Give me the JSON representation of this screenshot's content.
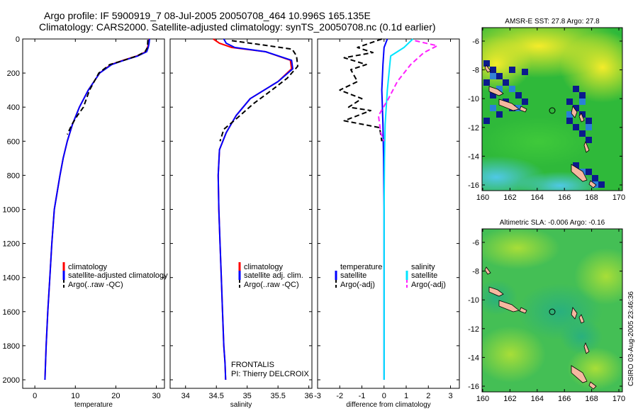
{
  "header": {
    "line1": "Argo profile: IF 5900919_7 08-Jul-2005 20050708_464 10.996S 165.135E",
    "line2": "Climatology: CARS2000. Satellite-adjusted climatology: synTS_20050708.nc (0.1d earlier)"
  },
  "credit": "CSIRO 03-Aug-2005 23:46:36",
  "colors": {
    "red": "#ff0000",
    "blue": "#0000ff",
    "black": "#000000",
    "cyan": "#00e5ff",
    "magenta": "#ff20ff"
  },
  "chart_data": [
    {
      "id": "temperature",
      "type": "line",
      "xlabel": "temperature",
      "ylabel": "",
      "xlim": [
        -3,
        32
      ],
      "ylim": [
        2050,
        0
      ],
      "xticks": [
        0,
        10,
        20,
        30
      ],
      "yticks": [
        0,
        200,
        400,
        600,
        800,
        1000,
        1200,
        1400,
        1600,
        1800,
        2000
      ],
      "series": [
        {
          "name": "climatology",
          "color": "red",
          "dash": "solid",
          "x": [
            28.2,
            28.1,
            27.8,
            27.4,
            25.2,
            21.8,
            18.8,
            16.0,
            13.2,
            11.0,
            9.3,
            8.0,
            7.0,
            6.2,
            5.5,
            4.8,
            4.2,
            3.7,
            3.2,
            2.8,
            2.5
          ],
          "y": [
            0,
            25,
            50,
            75,
            100,
            125,
            150,
            200,
            300,
            400,
            500,
            600,
            700,
            800,
            900,
            1000,
            1200,
            1400,
            1600,
            1800,
            2000
          ]
        },
        {
          "name": "satellite-adjusted climatology",
          "color": "blue",
          "dash": "solid",
          "x": [
            28.3,
            28.2,
            28.0,
            27.6,
            25.4,
            22.0,
            19.0,
            16.0,
            13.2,
            11.0,
            9.3,
            8.0,
            7.0,
            6.2,
            5.5,
            4.8,
            4.2,
            3.7,
            3.2,
            2.8,
            2.5
          ],
          "y": [
            0,
            25,
            50,
            75,
            100,
            125,
            150,
            200,
            300,
            400,
            500,
            600,
            700,
            800,
            900,
            1000,
            1200,
            1400,
            1600,
            1800,
            2000
          ]
        },
        {
          "name": "Argo(..raw -QC)",
          "color": "black",
          "dash": "dash",
          "x": [
            27.9,
            27.8,
            27.2,
            25.2,
            22.0,
            18.5,
            15.8,
            13.5,
            12.0,
            10.5,
            9.2,
            8.0
          ],
          "y": [
            5,
            50,
            75,
            100,
            125,
            150,
            200,
            300,
            400,
            450,
            500,
            560
          ]
        }
      ]
    },
    {
      "id": "salinity",
      "type": "line",
      "xlabel": "salinity",
      "ylabel": "",
      "xlim": [
        33.75,
        36.05
      ],
      "ylim": [
        2050,
        0
      ],
      "xticks": [
        34,
        34.5,
        35,
        35.5,
        36
      ],
      "tick_labels": [
        "34",
        "34.5",
        "35",
        "35.5",
        "36"
      ],
      "series": [
        {
          "name": "climatology",
          "color": "red",
          "dash": "solid",
          "x": [
            34.45,
            34.55,
            34.75,
            35.3,
            35.7,
            35.72,
            35.5,
            35.05,
            34.82,
            34.66,
            34.55,
            34.53,
            34.54,
            34.56,
            34.58,
            34.6,
            34.62,
            34.64,
            34.65
          ],
          "y": [
            0,
            25,
            50,
            75,
            125,
            175,
            250,
            350,
            450,
            550,
            650,
            800,
            1000,
            1200,
            1400,
            1600,
            1800,
            1900,
            2000
          ]
        },
        {
          "name": "satellite adj. clim.",
          "color": "blue",
          "dash": "solid",
          "x": [
            34.62,
            34.66,
            34.8,
            35.3,
            35.72,
            35.74,
            35.5,
            35.05,
            34.82,
            34.66,
            34.55,
            34.53,
            34.54,
            34.56,
            34.58,
            34.6,
            34.62,
            34.64,
            34.65
          ],
          "y": [
            0,
            25,
            50,
            75,
            125,
            175,
            250,
            350,
            450,
            550,
            650,
            800,
            1000,
            1200,
            1400,
            1600,
            1800,
            1900,
            2000
          ]
        },
        {
          "name": "Argo(..raw -QC)",
          "color": "black",
          "dash": "dash",
          "x": [
            34.75,
            35.35,
            35.73,
            35.8,
            35.82,
            35.65,
            35.4,
            35.1,
            34.85,
            34.62,
            34.56
          ],
          "y": [
            10,
            40,
            60,
            100,
            160,
            230,
            300,
            380,
            460,
            530,
            600
          ]
        }
      ],
      "annotation": [
        "FRONTALIS",
        "PI: Thierry DELCROIX"
      ]
    },
    {
      "id": "difference",
      "type": "line",
      "xlabel": "difference from climatology",
      "ylabel": "",
      "xlim": [
        -3,
        3.4
      ],
      "ylim": [
        2050,
        0
      ],
      "xticks": [
        -3,
        -2,
        -1,
        0,
        1,
        2,
        3
      ],
      "series": [
        {
          "name": "temperature satellite",
          "color": "blue",
          "dash": "solid",
          "x": [
            0.15,
            0.0,
            -0.05,
            -0.1,
            -0.05,
            -0.02,
            0,
            0,
            0
          ],
          "y": [
            0,
            50,
            150,
            300,
            500,
            700,
            1000,
            1500,
            2000
          ]
        },
        {
          "name": "temperature Argo(-adj)",
          "color": "black",
          "dash": "dash",
          "x": [
            -0.1,
            -1.2,
            -0.5,
            -1.8,
            -0.8,
            -1.5,
            -1.2,
            -2.0,
            -1.0,
            -1.6,
            -0.6,
            -1.8,
            -0.2,
            -0.1
          ],
          "y": [
            0,
            50,
            80,
            110,
            150,
            180,
            250,
            300,
            350,
            400,
            420,
            480,
            520,
            600
          ]
        },
        {
          "name": "salinity satellite",
          "color": "cyan",
          "dash": "solid",
          "x": [
            1.3,
            0.9,
            0.3,
            0.15,
            0.05,
            0.02,
            0,
            0,
            0
          ],
          "y": [
            0,
            50,
            100,
            300,
            500,
            700,
            1000,
            1500,
            2000
          ]
        },
        {
          "name": "salinity Argo(-adj)",
          "color": "magenta",
          "dash": "dash",
          "x": [
            1.4,
            2.4,
            1.8,
            1.2,
            0.6,
            0.2,
            -0.25,
            -0.15,
            0
          ],
          "y": [
            10,
            40,
            80,
            150,
            250,
            350,
            450,
            550,
            600
          ]
        }
      ]
    }
  ],
  "legends": {
    "temperature": [
      "climatology",
      "satellite-adjusted climatology",
      "Argo(..raw -QC)"
    ],
    "salinity": [
      "climatology",
      "satellite adj. clim.",
      "Argo(..raw -QC)"
    ],
    "difference_left": [
      "temperature",
      "satellite",
      "Argo(-adj)"
    ],
    "difference_right": [
      "salinity",
      "satellite",
      "Argo(-adj)"
    ]
  },
  "maps": [
    {
      "id": "sst",
      "title": "AMSR-E SST: 27.8 Argo: 27.8",
      "xticks": [
        "160",
        "162",
        "164",
        "166",
        "168",
        "170"
      ],
      "yticks": [
        "-6",
        "-8",
        "-10",
        "-12",
        "-14",
        "-16"
      ]
    },
    {
      "id": "sla",
      "title": "Altimetric SLA: -0.006 Argo: -0.16",
      "xticks": [
        "160",
        "162",
        "164",
        "166",
        "168",
        "170"
      ],
      "yticks": [
        "-6",
        "-8",
        "-10",
        "-12",
        "-14",
        "-16"
      ]
    }
  ]
}
